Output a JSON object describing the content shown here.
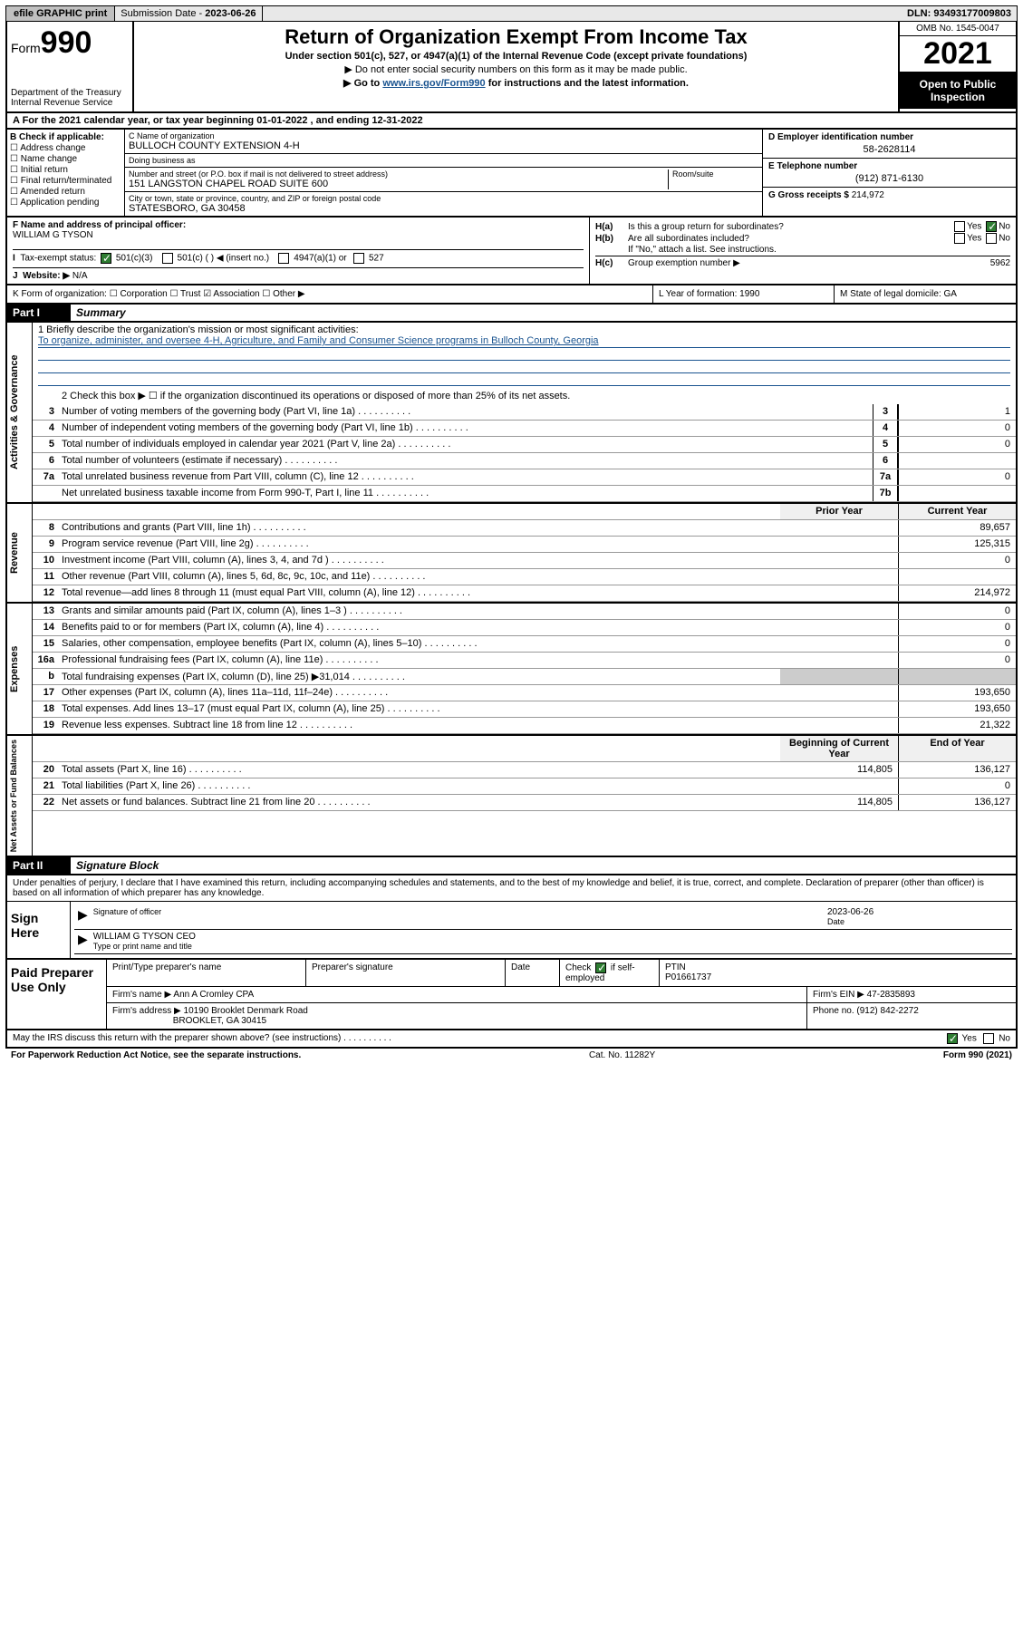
{
  "topbar": {
    "efile": "efile GRAPHIC print",
    "sub_label": "Submission Date - ",
    "sub_date": "2023-06-26",
    "dln_label": "DLN: ",
    "dln": "93493177009803"
  },
  "header": {
    "form_word": "Form",
    "form_num": "990",
    "dept": "Department of the Treasury Internal Revenue Service",
    "title": "Return of Organization Exempt From Income Tax",
    "subtitle": "Under section 501(c), 527, or 4947(a)(1) of the Internal Revenue Code (except private foundations)",
    "note1": "▶ Do not enter social security numbers on this form as it may be made public.",
    "note2_pre": "▶ Go to ",
    "note2_link": "www.irs.gov/Form990",
    "note2_post": " for instructions and the latest information.",
    "omb": "OMB No. 1545-0047",
    "year": "2021",
    "inspect": "Open to Public Inspection"
  },
  "section_a": "A For the 2021 calendar year, or tax year beginning 01-01-2022   , and ending 12-31-2022",
  "col_b": {
    "label": "B Check if applicable:",
    "items": [
      "Address change",
      "Name change",
      "Initial return",
      "Final return/terminated",
      "Amended return",
      "Application pending"
    ]
  },
  "col_c": {
    "name_hint": "C Name of organization",
    "name": "BULLOCH COUNTY EXTENSION 4-H",
    "dba_hint": "Doing business as",
    "dba": "",
    "addr_hint": "Number and street (or P.O. box if mail is not delivered to street address)",
    "room_hint": "Room/suite",
    "addr": "151 LANGSTON CHAPEL ROAD SUITE 600",
    "city_hint": "City or town, state or province, country, and ZIP or foreign postal code",
    "city": "STATESBORO, GA  30458"
  },
  "col_d": {
    "label": "D Employer identification number",
    "val": "58-2628114"
  },
  "col_e": {
    "label": "E Telephone number",
    "val": "(912) 871-6130"
  },
  "col_g": {
    "label": "G Gross receipts $ ",
    "val": "214,972"
  },
  "fg": {
    "f_label": "F  Name and address of principal officer:",
    "f_name": "WILLIAM G TYSON",
    "ha": "Is this a group return for subordinates?",
    "ha_ans_no": "No",
    "hb": "Are all subordinates included?",
    "hb_note": "If \"No,\" attach a list. See instructions.",
    "hc": "Group exemption number ▶",
    "hc_val": "5962",
    "i_label": "Tax-exempt status:",
    "i_501c3": "501(c)(3)",
    "i_501c": "501(c) (  ) ◀ (insert no.)",
    "i_4947": "4947(a)(1) or",
    "i_527": "527",
    "j_label": "Website: ▶",
    "j_val": "N/A"
  },
  "kl": {
    "k": "K Form of organization:   ☐ Corporation  ☐ Trust  ☑ Association  ☐ Other ▶",
    "l": "L Year of formation: 1990",
    "m": "M State of legal domicile: GA"
  },
  "part1": {
    "num": "Part I",
    "title": "Summary"
  },
  "mission_q": "1  Briefly describe the organization's mission or most significant activities:",
  "mission": "To organize, administer, and oversee 4-H, Agriculture, and Family and Consumer Science programs in Bulloch County, Georgia",
  "line2": "2  Check this box ▶ ☐  if the organization discontinued its operations or disposed of more than 25% of its net assets.",
  "summary_rows": [
    {
      "n": "3",
      "d": "Number of voting members of the governing body (Part VI, line 1a)",
      "ln": "3",
      "v": "1"
    },
    {
      "n": "4",
      "d": "Number of independent voting members of the governing body (Part VI, line 1b)",
      "ln": "4",
      "v": "0"
    },
    {
      "n": "5",
      "d": "Total number of individuals employed in calendar year 2021 (Part V, line 2a)",
      "ln": "5",
      "v": "0"
    },
    {
      "n": "6",
      "d": "Total number of volunteers (estimate if necessary)",
      "ln": "6",
      "v": ""
    },
    {
      "n": "7a",
      "d": "Total unrelated business revenue from Part VIII, column (C), line 12",
      "ln": "7a",
      "v": "0"
    },
    {
      "n": "",
      "d": "Net unrelated business taxable income from Form 990-T, Part I, line 11",
      "ln": "7b",
      "v": ""
    }
  ],
  "col_headers": {
    "b": "",
    "py": "Prior Year",
    "cy": "Current Year"
  },
  "revenue_rows": [
    {
      "n": "8",
      "d": "Contributions and grants (Part VIII, line 1h)",
      "py": "",
      "cy": "89,657"
    },
    {
      "n": "9",
      "d": "Program service revenue (Part VIII, line 2g)",
      "py": "",
      "cy": "125,315"
    },
    {
      "n": "10",
      "d": "Investment income (Part VIII, column (A), lines 3, 4, and 7d )",
      "py": "",
      "cy": "0"
    },
    {
      "n": "11",
      "d": "Other revenue (Part VIII, column (A), lines 5, 6d, 8c, 9c, 10c, and 11e)",
      "py": "",
      "cy": ""
    },
    {
      "n": "12",
      "d": "Total revenue—add lines 8 through 11 (must equal Part VIII, column (A), line 12)",
      "py": "",
      "cy": "214,972"
    }
  ],
  "expense_rows": [
    {
      "n": "13",
      "d": "Grants and similar amounts paid (Part IX, column (A), lines 1–3 )",
      "py": "",
      "cy": "0"
    },
    {
      "n": "14",
      "d": "Benefits paid to or for members (Part IX, column (A), line 4)",
      "py": "",
      "cy": "0"
    },
    {
      "n": "15",
      "d": "Salaries, other compensation, employee benefits (Part IX, column (A), lines 5–10)",
      "py": "",
      "cy": "0"
    },
    {
      "n": "16a",
      "d": "Professional fundraising fees (Part IX, column (A), line 11e)",
      "py": "",
      "cy": "0"
    },
    {
      "n": "b",
      "d": "Total fundraising expenses (Part IX, column (D), line 25) ▶31,014",
      "py": "gray",
      "cy": "gray"
    },
    {
      "n": "17",
      "d": "Other expenses (Part IX, column (A), lines 11a–11d, 11f–24e)",
      "py": "",
      "cy": "193,650"
    },
    {
      "n": "18",
      "d": "Total expenses. Add lines 13–17 (must equal Part IX, column (A), line 25)",
      "py": "",
      "cy": "193,650"
    },
    {
      "n": "19",
      "d": "Revenue less expenses. Subtract line 18 from line 12",
      "py": "",
      "cy": "21,322"
    }
  ],
  "net_headers": {
    "py": "Beginning of Current Year",
    "cy": "End of Year"
  },
  "net_rows": [
    {
      "n": "20",
      "d": "Total assets (Part X, line 16)",
      "py": "114,805",
      "cy": "136,127"
    },
    {
      "n": "21",
      "d": "Total liabilities (Part X, line 26)",
      "py": "",
      "cy": "0"
    },
    {
      "n": "22",
      "d": "Net assets or fund balances. Subtract line 21 from line 20",
      "py": "114,805",
      "cy": "136,127"
    }
  ],
  "side_labels": {
    "ag": "Activities & Governance",
    "rev": "Revenue",
    "exp": "Expenses",
    "net": "Net Assets or Fund Balances"
  },
  "part2": {
    "num": "Part II",
    "title": "Signature Block"
  },
  "sig_note": "Under penalties of perjury, I declare that I have examined this return, including accompanying schedules and statements, and to the best of my knowledge and belief, it is true, correct, and complete. Declaration of preparer (other than officer) is based on all information of which preparer has any knowledge.",
  "sign_here": "Sign Here",
  "sig": {
    "officer_lbl": "Signature of officer",
    "date_lbl": "Date",
    "date": "2023-06-26",
    "name_lbl": "Type or print name and title",
    "name": "WILLIAM G TYSON  CEO"
  },
  "paid": {
    "label": "Paid Preparer Use Only",
    "h1": "Print/Type preparer's name",
    "h2": "Preparer's signature",
    "h3": "Date",
    "h4_pre": "Check",
    "h4_post": "if self-employed",
    "ptin_lbl": "PTIN",
    "ptin": "P01661737",
    "firm_name_lbl": "Firm's name    ▶",
    "firm_name": "Ann A Cromley CPA",
    "firm_ein_lbl": "Firm's EIN ▶",
    "firm_ein": "47-2835893",
    "firm_addr_lbl": "Firm's address ▶",
    "firm_addr1": "10190 Brooklet Denmark Road",
    "firm_addr2": "BROOKLET, GA  30415",
    "phone_lbl": "Phone no.",
    "phone": "(912) 842-2272"
  },
  "footer": {
    "q": "May the IRS discuss this return with the preparer shown above? (see instructions)",
    "yes": "Yes",
    "no": "No"
  },
  "bottom": {
    "left": "For Paperwork Reduction Act Notice, see the separate instructions.",
    "mid": "Cat. No. 11282Y",
    "right": "Form 990 (2021)"
  }
}
